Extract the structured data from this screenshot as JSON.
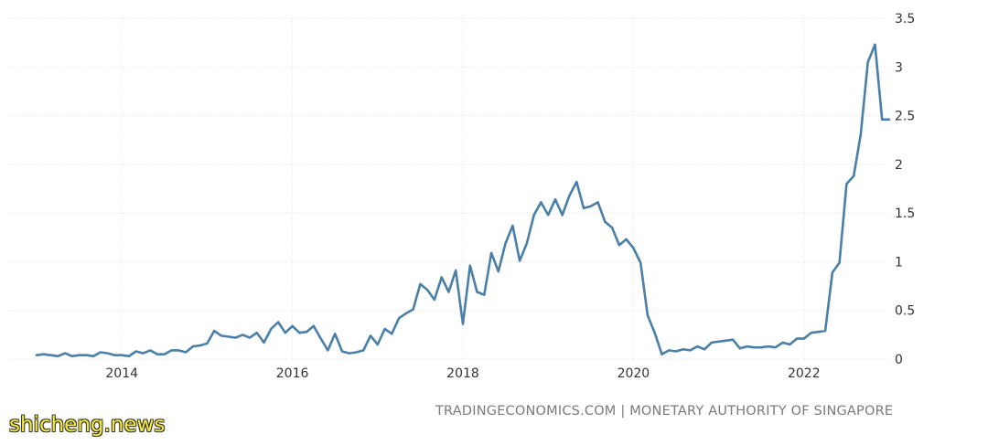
{
  "chart_data": {
    "type": "line",
    "title": "",
    "xlabel": "",
    "ylabel": "",
    "xlim": [
      "2013-01",
      "2023-01"
    ],
    "ylim": [
      0,
      3.5
    ],
    "y_ticks": [
      0,
      0.5,
      1,
      1.5,
      2,
      2.5,
      3,
      3.5
    ],
    "y_tick_labels": [
      "0",
      "0.5",
      "1",
      "1.5",
      "2",
      "2.5",
      "3",
      "3.5"
    ],
    "x_tick_labels": [
      "2014",
      "2016",
      "2018",
      "2020",
      "2022"
    ],
    "grid": true,
    "y_axis_position": "right",
    "line_color": "#4a7fa8",
    "grid_color": "#e3e3e3",
    "series": [
      {
        "x": [
          "2013-01",
          "2013-02",
          "2013-03",
          "2013-04",
          "2013-05",
          "2013-06",
          "2013-07",
          "2013-08",
          "2013-09",
          "2013-10",
          "2013-11",
          "2013-12",
          "2014-01",
          "2014-02",
          "2014-03",
          "2014-04",
          "2014-05",
          "2014-06",
          "2014-07",
          "2014-08",
          "2014-09",
          "2014-10",
          "2014-11",
          "2014-12",
          "2015-01",
          "2015-02",
          "2015-03",
          "2015-04",
          "2015-05",
          "2015-06",
          "2015-07",
          "2015-08",
          "2015-09",
          "2015-10",
          "2015-11",
          "2015-12",
          "2016-01",
          "2016-02",
          "2016-03",
          "2016-04",
          "2016-05",
          "2016-06",
          "2016-07",
          "2016-08",
          "2016-09",
          "2016-10",
          "2016-11",
          "2016-12",
          "2017-01",
          "2017-02",
          "2017-03",
          "2017-04",
          "2017-05",
          "2017-06",
          "2017-07",
          "2017-08",
          "2017-09",
          "2017-10",
          "2017-11",
          "2017-12",
          "2018-01",
          "2018-02",
          "2018-03",
          "2018-04",
          "2018-05",
          "2018-06",
          "2018-07",
          "2018-08",
          "2018-09",
          "2018-10",
          "2018-11",
          "2018-12",
          "2019-01",
          "2019-02",
          "2019-03",
          "2019-04",
          "2019-05",
          "2019-06",
          "2019-07",
          "2019-08",
          "2019-09",
          "2019-10",
          "2019-11",
          "2019-12",
          "2020-01",
          "2020-02",
          "2020-03",
          "2020-04",
          "2020-05",
          "2020-06",
          "2020-07",
          "2020-08",
          "2020-09",
          "2020-10",
          "2020-11",
          "2020-12",
          "2021-01",
          "2021-02",
          "2021-03",
          "2021-04",
          "2021-05",
          "2021-06",
          "2021-07",
          "2021-08",
          "2021-09",
          "2021-10",
          "2021-11",
          "2021-12",
          "2022-01",
          "2022-02",
          "2022-03",
          "2022-04",
          "2022-05",
          "2022-06",
          "2022-07",
          "2022-08",
          "2022-09",
          "2022-10",
          "2022-11",
          "2022-12",
          "2023-01"
        ],
        "y": [
          0.04,
          0.05,
          0.04,
          0.03,
          0.06,
          0.03,
          0.04,
          0.04,
          0.03,
          0.07,
          0.06,
          0.04,
          0.04,
          0.03,
          0.08,
          0.06,
          0.09,
          0.05,
          0.05,
          0.09,
          0.09,
          0.07,
          0.13,
          0.14,
          0.16,
          0.29,
          0.24,
          0.23,
          0.22,
          0.25,
          0.22,
          0.27,
          0.17,
          0.31,
          0.38,
          0.27,
          0.34,
          0.27,
          0.28,
          0.34,
          0.21,
          0.09,
          0.26,
          0.08,
          0.06,
          0.07,
          0.09,
          0.24,
          0.15,
          0.31,
          0.26,
          0.42,
          0.47,
          0.51,
          0.77,
          0.71,
          0.61,
          0.84,
          0.69,
          0.91,
          0.36,
          0.96,
          0.69,
          0.66,
          1.09,
          0.9,
          1.19,
          1.37,
          1.01,
          1.19,
          1.48,
          1.61,
          1.48,
          1.64,
          1.48,
          1.68,
          1.82,
          1.55,
          1.57,
          1.61,
          1.41,
          1.35,
          1.17,
          1.23,
          1.14,
          0.99,
          0.45,
          0.27,
          0.05,
          0.09,
          0.08,
          0.1,
          0.09,
          0.13,
          0.1,
          0.17,
          0.18,
          0.19,
          0.2,
          0.11,
          0.13,
          0.12,
          0.12,
          0.13,
          0.12,
          0.17,
          0.15,
          0.21,
          0.21,
          0.27,
          0.28,
          0.29,
          0.89,
          0.99,
          1.8,
          1.88,
          2.31,
          3.05,
          3.23,
          2.46,
          2.46
        ]
      }
    ]
  },
  "footer": {
    "source_text": "TRADINGECONOMICS.COM | MONETARY AUTHORITY OF SINGAPORE"
  },
  "watermark": {
    "text": "shicheng.news"
  }
}
